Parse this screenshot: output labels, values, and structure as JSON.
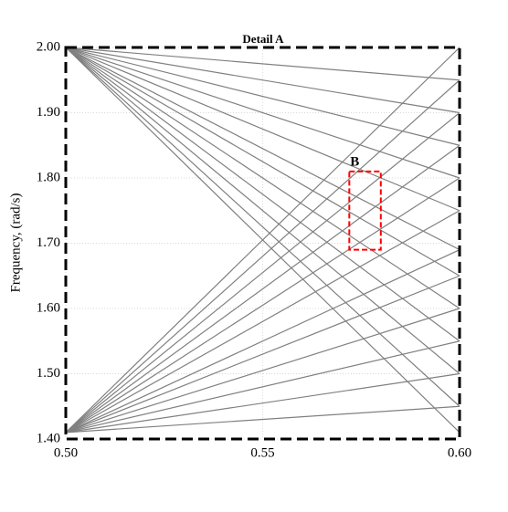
{
  "chart_data": {
    "type": "line",
    "title": "Detail A",
    "ylabel": "Frequency, (rad/s)",
    "x": [
      0.5,
      0.6
    ],
    "xlim": [
      0.5,
      0.6
    ],
    "ylim": [
      1.4,
      2.0
    ],
    "xticks": [
      {
        "value": 0.5,
        "label": "0.50"
      },
      {
        "value": 0.55,
        "label": "0.55"
      },
      {
        "value": 0.6,
        "label": "0.60"
      }
    ],
    "yticks": [
      {
        "value": 1.4,
        "label": "1.40"
      },
      {
        "value": 1.5,
        "label": "1.50"
      },
      {
        "value": 1.6,
        "label": "1.60"
      },
      {
        "value": 1.7,
        "label": "1.70"
      },
      {
        "value": 1.8,
        "label": "1.80"
      },
      {
        "value": 1.9,
        "label": "1.90"
      },
      {
        "value": 2.0,
        "label": "2.00"
      }
    ],
    "grid": true,
    "series": [
      {
        "color": "#808080",
        "values": [
          1.41,
          1.45
        ]
      },
      {
        "color": "#808080",
        "values": [
          1.41,
          1.5
        ]
      },
      {
        "color": "#808080",
        "values": [
          1.41,
          1.55
        ]
      },
      {
        "color": "#808080",
        "values": [
          1.41,
          1.6
        ]
      },
      {
        "color": "#808080",
        "values": [
          1.41,
          1.65
        ]
      },
      {
        "color": "#808080",
        "values": [
          1.41,
          1.69
        ]
      },
      {
        "color": "#808080",
        "values": [
          1.41,
          1.75
        ]
      },
      {
        "color": "#808080",
        "values": [
          1.41,
          1.8
        ]
      },
      {
        "color": "#808080",
        "values": [
          1.41,
          1.85
        ]
      },
      {
        "color": "#808080",
        "values": [
          1.41,
          1.9
        ]
      },
      {
        "color": "#808080",
        "values": [
          1.41,
          1.95
        ]
      },
      {
        "color": "#808080",
        "values": [
          1.41,
          2.0
        ]
      },
      {
        "color": "#808080",
        "values": [
          2.0,
          1.95
        ]
      },
      {
        "color": "#808080",
        "values": [
          2.0,
          1.9
        ]
      },
      {
        "color": "#808080",
        "values": [
          2.0,
          1.85
        ]
      },
      {
        "color": "#808080",
        "values": [
          2.0,
          1.8
        ]
      },
      {
        "color": "#808080",
        "values": [
          2.0,
          1.75
        ]
      },
      {
        "color": "#808080",
        "values": [
          2.0,
          1.69
        ]
      },
      {
        "color": "#808080",
        "values": [
          2.0,
          1.65
        ]
      },
      {
        "color": "#808080",
        "values": [
          2.0,
          1.6
        ]
      },
      {
        "color": "#808080",
        "values": [
          2.0,
          1.55
        ]
      },
      {
        "color": "#808080",
        "values": [
          2.0,
          1.5
        ]
      },
      {
        "color": "#808080",
        "values": [
          2.0,
          1.45
        ]
      },
      {
        "color": "#808080",
        "values": [
          2.0,
          1.41
        ]
      }
    ],
    "annotation": {
      "label": "B",
      "color": "#ff0000",
      "x": [
        0.572,
        0.58
      ],
      "y": [
        1.69,
        1.81
      ]
    }
  }
}
